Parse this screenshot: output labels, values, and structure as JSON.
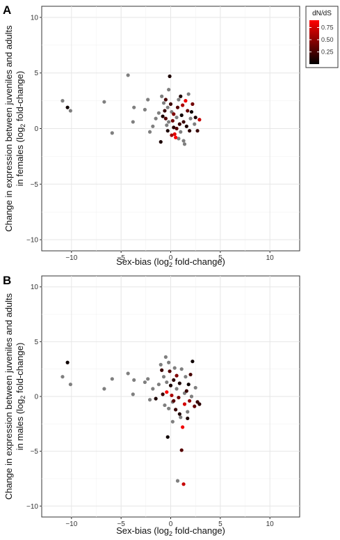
{
  "chart_data": [
    {
      "panel_label": "A",
      "type": "scatter",
      "xlabel": "Sex-bias (log₂ fold-change)",
      "ylabel": "Change in expression between juveniles and adults in females (log₂ fold-change)",
      "ylabel_line1": "Change in expression between juveniles and adults",
      "ylabel_line2_pre": "in females (log",
      "ylabel_line2_sub": "2",
      "ylabel_line2_post": " fold-change)",
      "xlabel_pre": "Sex-bias (log",
      "xlabel_sub": "2",
      "xlabel_post": " fold-change)",
      "xlim": [
        -13,
        13
      ],
      "ylim": [
        -11,
        11
      ],
      "x_ticks": [
        -10,
        -5,
        0,
        5,
        10
      ],
      "y_ticks": [
        -10,
        -5,
        0,
        5,
        10
      ],
      "grid": true,
      "legend": {
        "title": "dN/dS",
        "position": "top-right",
        "ticks": [
          0.25,
          0.5,
          0.75
        ],
        "tick_labels": [
          "0.25",
          "0.50",
          "0.75"
        ],
        "range": [
          0,
          0.9
        ],
        "colors": [
          "#000000",
          "#ff0000"
        ]
      },
      "points_no_dnds_color": "#7f7f7f",
      "points": [
        [
          -10.9,
          2.5,
          null
        ],
        [
          -10.4,
          1.9,
          0.05
        ],
        [
          -10.1,
          1.6,
          null
        ],
        [
          -6.7,
          2.4,
          null
        ],
        [
          -5.9,
          -0.4,
          null
        ],
        [
          -4.3,
          4.8,
          null
        ],
        [
          -3.7,
          1.9,
          null
        ],
        [
          -3.8,
          0.6,
          null
        ],
        [
          -2.6,
          1.7,
          null
        ],
        [
          -2.3,
          2.6,
          null
        ],
        [
          -2.1,
          -0.3,
          null
        ],
        [
          -1.8,
          0.2,
          null
        ],
        [
          -1.5,
          0.9,
          null
        ],
        [
          -1.2,
          1.4,
          null
        ],
        [
          -1.0,
          -1.2,
          0.1
        ],
        [
          -0.9,
          2.9,
          null
        ],
        [
          -0.7,
          2.3,
          null
        ],
        [
          -0.6,
          1.6,
          0.2
        ],
        [
          -0.5,
          0.9,
          0.3
        ],
        [
          -0.4,
          0.3,
          null
        ],
        [
          -0.3,
          -0.2,
          0.1
        ],
        [
          -0.2,
          3.5,
          null
        ],
        [
          -0.1,
          4.7,
          0.1
        ],
        [
          0.0,
          2.2,
          0.2
        ],
        [
          0.1,
          1.5,
          null
        ],
        [
          0.2,
          0.7,
          0.4
        ],
        [
          0.3,
          0.1,
          0.15
        ],
        [
          0.4,
          -0.5,
          0.8
        ],
        [
          0.5,
          -0.8,
          0.9
        ],
        [
          0.6,
          1.0,
          null
        ],
        [
          0.7,
          1.9,
          0.3
        ],
        [
          0.8,
          2.6,
          null
        ],
        [
          0.9,
          0.4,
          0.2
        ],
        [
          1.0,
          -0.3,
          null
        ],
        [
          1.1,
          1.2,
          0.05
        ],
        [
          1.2,
          2.1,
          0.6
        ],
        [
          1.3,
          -1.1,
          null
        ],
        [
          1.4,
          -1.4,
          null
        ],
        [
          1.5,
          2.5,
          0.85
        ],
        [
          1.6,
          0.2,
          0.1
        ],
        [
          1.7,
          1.6,
          0.35
        ],
        [
          1.8,
          3.1,
          null
        ],
        [
          1.9,
          -0.2,
          0.15
        ],
        [
          2.0,
          0.9,
          null
        ],
        [
          2.1,
          1.5,
          0.05
        ],
        [
          2.2,
          2.2,
          0.4
        ],
        [
          2.4,
          0.4,
          null
        ],
        [
          2.5,
          1.0,
          0.1
        ],
        [
          2.7,
          -0.2,
          0.2
        ],
        [
          2.9,
          0.8,
          0.7
        ],
        [
          -0.8,
          1.1,
          0.1
        ],
        [
          -0.5,
          2.6,
          0.25
        ],
        [
          0.3,
          1.3,
          0.45
        ],
        [
          0.6,
          0.0,
          0.3
        ],
        [
          -0.2,
          0.6,
          null
        ],
        [
          1.0,
          2.9,
          0.1
        ],
        [
          0.1,
          -0.6,
          0.55
        ],
        [
          -0.3,
          1.9,
          null
        ],
        [
          1.3,
          0.6,
          0.2
        ],
        [
          0.8,
          -0.9,
          null
        ]
      ]
    },
    {
      "panel_label": "B",
      "type": "scatter",
      "xlabel": "Sex-bias (log₂ fold-change)",
      "ylabel": "Change in expression between juveniles and adults in males (log₂ fold-change)",
      "ylabel_line1": "Change in expression between juveniles and adults",
      "ylabel_line2_pre": "in males (log",
      "ylabel_line2_sub": "2",
      "ylabel_line2_post": " fold-change)",
      "xlabel_pre": "Sex-bias (log",
      "xlabel_sub": "2",
      "xlabel_post": " fold-change)",
      "xlim": [
        -13,
        13
      ],
      "ylim": [
        -11,
        11
      ],
      "x_ticks": [
        -10,
        -5,
        0,
        5,
        10
      ],
      "y_ticks": [
        -10,
        -5,
        0,
        5,
        10
      ],
      "grid": true,
      "points_no_dnds_color": "#7f7f7f",
      "points": [
        [
          -10.9,
          1.8,
          null
        ],
        [
          -10.4,
          3.1,
          0.05
        ],
        [
          -10.1,
          1.1,
          null
        ],
        [
          -6.7,
          0.7,
          null
        ],
        [
          -5.9,
          1.6,
          null
        ],
        [
          -4.3,
          2.1,
          null
        ],
        [
          -3.7,
          1.5,
          null
        ],
        [
          -3.8,
          0.2,
          null
        ],
        [
          -2.6,
          1.3,
          null
        ],
        [
          -2.3,
          1.6,
          null
        ],
        [
          -2.1,
          -0.3,
          null
        ],
        [
          -1.8,
          0.7,
          null
        ],
        [
          -1.5,
          -0.2,
          0.1
        ],
        [
          -1.2,
          1.1,
          null
        ],
        [
          -1.0,
          2.9,
          null
        ],
        [
          -0.9,
          2.4,
          0.2
        ],
        [
          -0.7,
          1.8,
          null
        ],
        [
          -0.6,
          -0.8,
          null
        ],
        [
          -0.5,
          3.6,
          null
        ],
        [
          -0.4,
          0.4,
          0.9
        ],
        [
          -0.3,
          -3.7,
          0.05
        ],
        [
          -0.2,
          3.1,
          null
        ],
        [
          -0.1,
          2.3,
          0.3
        ],
        [
          0.0,
          1.0,
          0.1
        ],
        [
          0.1,
          0.1,
          0.6
        ],
        [
          0.2,
          -0.5,
          null
        ],
        [
          0.3,
          1.5,
          0.15
        ],
        [
          0.4,
          2.6,
          null
        ],
        [
          0.5,
          -1.2,
          0.2
        ],
        [
          0.6,
          0.7,
          null
        ],
        [
          0.7,
          -7.7,
          null
        ],
        [
          0.8,
          -0.1,
          0.4
        ],
        [
          0.9,
          1.2,
          0.1
        ],
        [
          1.0,
          -1.9,
          null
        ],
        [
          1.1,
          -4.9,
          0.3
        ],
        [
          1.2,
          -2.8,
          0.85
        ],
        [
          1.3,
          -8.0,
          0.7
        ],
        [
          1.4,
          -0.7,
          0.75
        ],
        [
          1.5,
          1.8,
          null
        ],
        [
          1.6,
          0.5,
          0.2
        ],
        [
          1.7,
          -1.4,
          null
        ],
        [
          1.8,
          1.1,
          0.05
        ],
        [
          1.9,
          -0.4,
          0.5
        ],
        [
          2.0,
          2.0,
          0.25
        ],
        [
          2.1,
          0.0,
          null
        ],
        [
          2.2,
          3.2,
          0.05
        ],
        [
          2.4,
          -0.9,
          0.35
        ],
        [
          2.5,
          0.8,
          null
        ],
        [
          2.7,
          -0.5,
          0.2
        ],
        [
          2.9,
          -0.7,
          0.15
        ],
        [
          -0.8,
          0.2,
          0.2
        ],
        [
          -0.2,
          -1.1,
          null
        ],
        [
          0.3,
          -0.4,
          0.3
        ],
        [
          0.9,
          -1.6,
          0.1
        ],
        [
          1.4,
          0.3,
          null
        ],
        [
          0.6,
          1.9,
          0.45
        ],
        [
          -0.4,
          1.3,
          null
        ],
        [
          1.1,
          2.5,
          null
        ],
        [
          0.2,
          -2.3,
          null
        ],
        [
          1.7,
          -2.0,
          0.1
        ]
      ]
    }
  ]
}
